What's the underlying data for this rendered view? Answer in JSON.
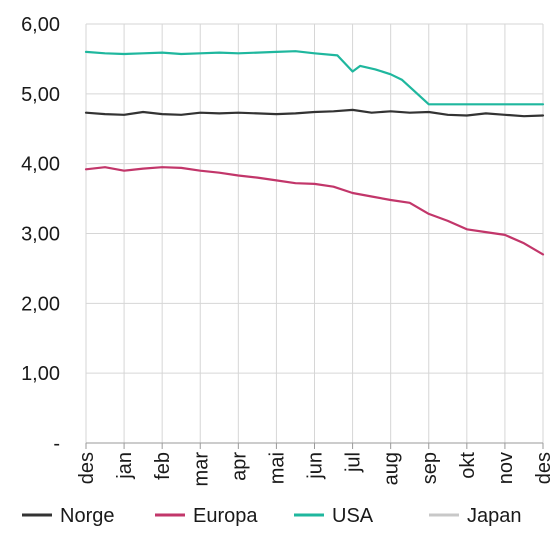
{
  "chart_data": {
    "type": "line",
    "y_ticks": [
      "-",
      "1,00",
      "2,00",
      "3,00",
      "4,00",
      "5,00",
      "6,00"
    ],
    "ylim": [
      0,
      6
    ],
    "grid": "vertical and horizontal",
    "legend_position": "bottom",
    "categories": [
      "des",
      "jan",
      "feb",
      "mar",
      "apr",
      "mai",
      "jun",
      "jul",
      "aug",
      "sep",
      "okt",
      "nov",
      "des"
    ],
    "series": [
      {
        "name": "Norge",
        "color": "#333333",
        "x": [
          0,
          0.5,
          1,
          1.5,
          2,
          2.5,
          3,
          3.5,
          4,
          4.5,
          5,
          5.5,
          6,
          6.5,
          7,
          7.5,
          8,
          8.5,
          9,
          9.5,
          10,
          10.5,
          11,
          11.5,
          12
        ],
        "values": [
          4.73,
          4.71,
          4.7,
          4.74,
          4.71,
          4.7,
          4.73,
          4.72,
          4.73,
          4.72,
          4.71,
          4.72,
          4.74,
          4.75,
          4.77,
          4.73,
          4.75,
          4.73,
          4.74,
          4.7,
          4.69,
          4.72,
          4.7,
          4.68,
          4.69
        ]
      },
      {
        "name": "Europa",
        "color": "#c2366a",
        "x": [
          0,
          0.5,
          1,
          1.5,
          2,
          2.5,
          3,
          3.5,
          4,
          4.5,
          5,
          5.5,
          6,
          6.5,
          7,
          7.5,
          8,
          8.5,
          9,
          9.5,
          10,
          10.5,
          11,
          11.5,
          12
        ],
        "values": [
          3.92,
          3.95,
          3.9,
          3.93,
          3.95,
          3.94,
          3.9,
          3.87,
          3.83,
          3.8,
          3.76,
          3.72,
          3.71,
          3.67,
          3.58,
          3.53,
          3.48,
          3.44,
          3.28,
          3.18,
          3.06,
          3.02,
          2.98,
          2.86,
          2.7
        ]
      },
      {
        "name": "USA",
        "color": "#1fb79e",
        "x": [
          0,
          0.5,
          1,
          1.5,
          2,
          2.5,
          3,
          3.5,
          4,
          4.5,
          5,
          5.5,
          6,
          6.6,
          7,
          7.2,
          7.6,
          8,
          8.3,
          8.6,
          9,
          9.5,
          10,
          11,
          12
        ],
        "values": [
          5.6,
          5.58,
          5.57,
          5.58,
          5.59,
          5.57,
          5.58,
          5.59,
          5.58,
          5.59,
          5.6,
          5.61,
          5.58,
          5.55,
          5.32,
          5.4,
          5.35,
          5.28,
          5.2,
          5.05,
          4.85,
          4.85,
          4.85,
          4.85,
          4.85
        ]
      },
      {
        "name": "Japan",
        "color": "#c8c8c8",
        "x": [],
        "values": []
      }
    ]
  }
}
